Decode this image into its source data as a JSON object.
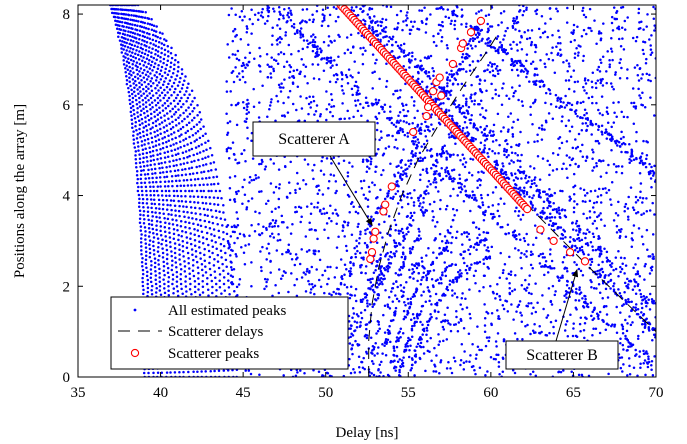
{
  "chart_data": {
    "type": "scatter",
    "xlabel": "Delay [ns]",
    "ylabel": "Positions along the array [m]",
    "xlim": [
      35,
      70
    ],
    "ylim": [
      0,
      8.2
    ],
    "xticks": [
      35,
      40,
      45,
      50,
      55,
      60,
      65,
      70
    ],
    "yticks": [
      0,
      2,
      4,
      6,
      8
    ],
    "grid": false,
    "legend_position": "bottom-left",
    "legend": [
      {
        "label": "All estimated peaks",
        "marker": "dot",
        "color": "#0000ff"
      },
      {
        "label": "Scatterer delays",
        "marker": "dashed-line",
        "color": "#000000"
      },
      {
        "label": "Scatterer peaks",
        "marker": "circle",
        "color": "#ff0000"
      }
    ],
    "series": [
      {
        "name": "Scatterer delays",
        "style": "dashed",
        "curves": [
          {
            "id": "A",
            "points": [
              [
                52.6,
                0
              ],
              [
                52.6,
                0.8
              ],
              [
                52.8,
                1.6
              ],
              [
                53.2,
                2.4
              ],
              [
                53.8,
                3.2
              ],
              [
                54.6,
                4.0
              ],
              [
                55.6,
                4.8
              ],
              [
                56.9,
                5.6
              ],
              [
                58.3,
                6.4
              ],
              [
                59.8,
                7.2
              ],
              [
                60.5,
                7.6
              ]
            ]
          },
          {
            "id": "B",
            "points": [
              [
                51.0,
                8.2
              ],
              [
                54.0,
                6.9
              ],
              [
                57.0,
                5.7
              ],
              [
                60.0,
                4.6
              ],
              [
                63.0,
                3.5
              ],
              [
                66.0,
                2.4
              ],
              [
                70.0,
                1.0
              ]
            ]
          }
        ]
      },
      {
        "name": "Scatterer peaks",
        "points": [
          [
            52.7,
            2.6
          ],
          [
            52.8,
            2.75
          ],
          [
            52.9,
            3.05
          ],
          [
            53.0,
            3.2
          ],
          [
            53.5,
            3.65
          ],
          [
            53.6,
            3.8
          ],
          [
            54.0,
            4.2
          ],
          [
            55.3,
            5.4
          ],
          [
            56.1,
            5.75
          ],
          [
            56.2,
            5.95
          ],
          [
            56.5,
            6.3
          ],
          [
            56.7,
            6.5
          ],
          [
            56.9,
            6.6
          ],
          [
            57.0,
            6.2
          ],
          [
            57.7,
            6.9
          ],
          [
            58.2,
            7.25
          ],
          [
            58.3,
            7.35
          ],
          [
            58.8,
            7.6
          ],
          [
            59.4,
            7.85
          ],
          [
            63.0,
            3.25
          ],
          [
            63.8,
            3.0
          ],
          [
            64.8,
            2.75
          ],
          [
            65.7,
            2.55
          ]
        ],
        "dense_run": {
          "from": [
            50.9,
            8.2
          ],
          "to": [
            62.2,
            3.7
          ],
          "count": 96
        }
      },
      {
        "name": "All estimated peaks",
        "description_points": "dense cloud of blue dots (~several thousand)",
        "structure": {
          "arc_bands": {
            "center_delay": 36.0,
            "radius_start": 2.8,
            "radius_end": 8.0,
            "band_count": 22
          },
          "diagonal_bands": [
            {
              "from": [
                46.5,
                8.2
              ],
              "to": [
                70,
                0.2
              ],
              "count": 260
            },
            {
              "from": [
                51,
                8.2
              ],
              "to": [
                70,
                1.0
              ],
              "count": 300
            },
            {
              "from": [
                52,
                8.2
              ],
              "to": [
                70,
                1.5
              ],
              "count": 240
            },
            {
              "from": [
                60,
                8.2
              ],
              "to": [
                48,
                0
              ],
              "count": 220
            },
            {
              "from": [
                62,
                8.2
              ],
              "to": [
                50,
                0
              ],
              "count": 200
            },
            {
              "from": [
                57,
                8.2
              ],
              "to": [
                70,
                4.5
              ],
              "count": 180
            }
          ],
          "lower_arcs": {
            "center": [
              61,
              -1.5
            ],
            "radii": [
              4.2,
              4.6,
              5.0,
              5.4,
              5.8,
              6.2,
              6.6
            ],
            "count_each": 160
          },
          "random_fill": 3000
        }
      }
    ],
    "annotations": [
      {
        "label": "Scatterer A",
        "target": [
          53.0,
          3.25
        ]
      },
      {
        "label": "Scatterer B",
        "target": [
          65.4,
          2.5
        ]
      }
    ]
  }
}
